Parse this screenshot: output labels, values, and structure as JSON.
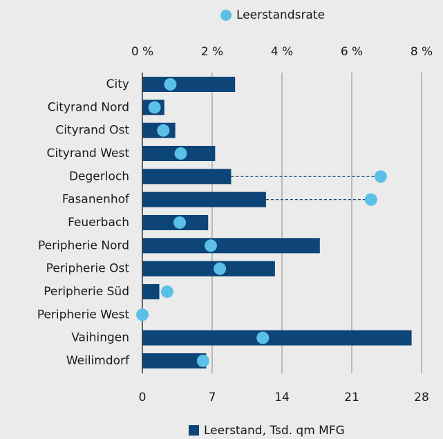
{
  "chart_data": {
    "type": "bar",
    "categories": [
      "City",
      "Cityrand Nord",
      "Cityrand Ost",
      "Cityrand West",
      "Degerloch",
      "Fasanenhof",
      "Feuerbach",
      "Peripherie Nord",
      "Peripherie Ost",
      "Peripherie Süd",
      "Peripherie West",
      "Vaihingen",
      "Weilimdorf"
    ],
    "series": [
      {
        "name": "Leerstand, Tsd. qm MFG",
        "color": "#0d4579",
        "axis": "x",
        "values": [
          9.3,
          2.2,
          3.3,
          7.3,
          8.9,
          12.4,
          6.6,
          17.8,
          13.3,
          1.7,
          0,
          27.0,
          6.4
        ]
      },
      {
        "name": "Leerstandsrate",
        "color": "#5bc0e8",
        "axis": "x2",
        "values": [
          0.8,
          0.35,
          0.6,
          1.1,
          6.83,
          6.55,
          1.07,
          1.96,
          2.22,
          0.71,
          0,
          3.45,
          1.74
        ]
      }
    ],
    "xlim": [
      0,
      28
    ],
    "xticks": [
      0,
      7,
      14,
      21,
      28
    ],
    "x2lim": [
      0,
      8
    ],
    "x2ticks": [
      {
        "value": 0,
        "label": "0 %"
      },
      {
        "value": 2,
        "label": "2 %"
      },
      {
        "value": 4,
        "label": "4 %"
      },
      {
        "value": 6,
        "label": "6 %"
      },
      {
        "value": 8,
        "label": "8 %"
      }
    ],
    "grid": true
  }
}
